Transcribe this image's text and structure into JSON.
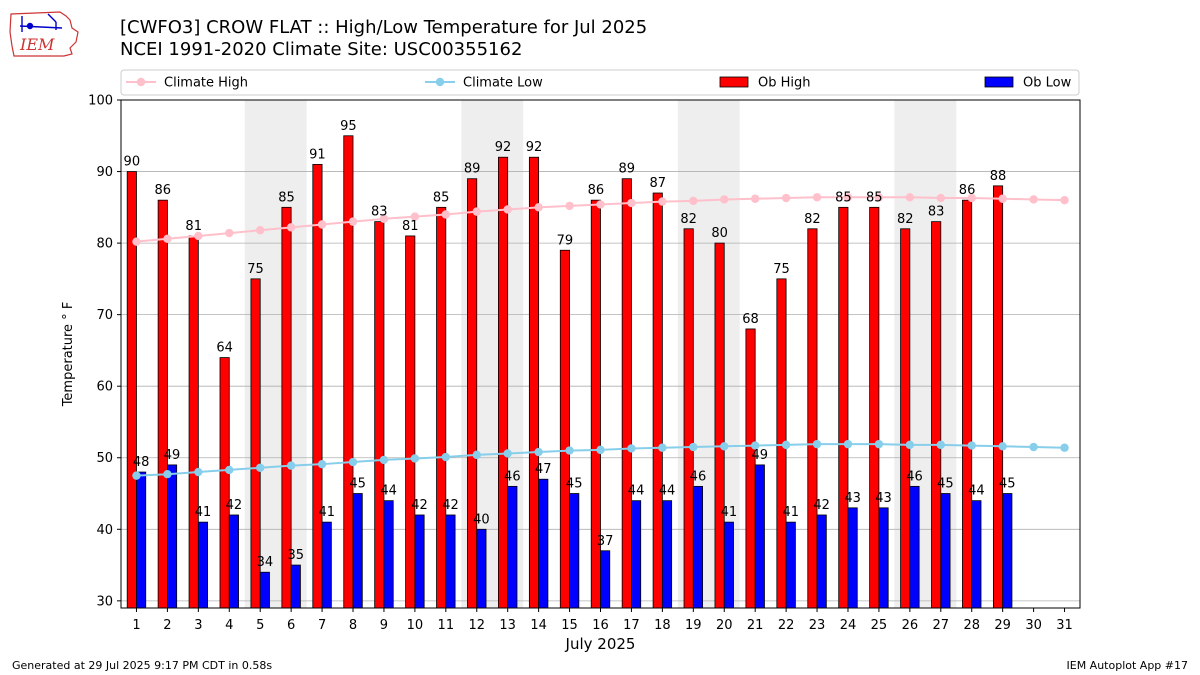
{
  "header": {
    "title_line1": "[CWFO3] CROW FLAT :: High/Low Temperature for Jul 2025",
    "title_line2": "NCEI 1991-2020 Climate Site: USC00355162",
    "logo_text": "IEM"
  },
  "footer": {
    "generated": "Generated at 29 Jul 2025 9:17 PM CDT in 0.58s",
    "app": "IEM Autoplot App #17"
  },
  "colors": {
    "ob_high": "#ff0000",
    "ob_low": "#0000ff",
    "climate_high": "#ffc0cb",
    "climate_low": "#87ceeb",
    "weekend_shade": "#eeeeee",
    "grid": "#b0b0b0"
  },
  "chart_data": {
    "type": "bar",
    "xlabel": "July 2025",
    "ylabel": "Temperature ° F",
    "ylim": [
      29,
      100
    ],
    "yticks": [
      30,
      40,
      50,
      60,
      70,
      80,
      90,
      100
    ],
    "grid": "horizontal",
    "legend_position": "top",
    "categories": [
      "1",
      "2",
      "3",
      "4",
      "5",
      "6",
      "7",
      "8",
      "9",
      "10",
      "11",
      "12",
      "13",
      "14",
      "15",
      "16",
      "17",
      "18",
      "19",
      "20",
      "21",
      "22",
      "23",
      "24",
      "25",
      "26",
      "27",
      "28",
      "29",
      "30",
      "31"
    ],
    "shaded_weekend_days": [
      [
        5,
        6
      ],
      [
        12,
        13
      ],
      [
        19,
        20
      ],
      [
        26,
        27
      ]
    ],
    "series": [
      {
        "name": "Climate High",
        "kind": "line",
        "values": [
          80.2,
          80.6,
          81.0,
          81.4,
          81.8,
          82.2,
          82.6,
          83.0,
          83.4,
          83.7,
          84.0,
          84.4,
          84.7,
          85.0,
          85.2,
          85.4,
          85.6,
          85.8,
          85.9,
          86.1,
          86.2,
          86.3,
          86.4,
          86.4,
          86.4,
          86.4,
          86.3,
          86.3,
          86.2,
          86.1,
          86.0
        ]
      },
      {
        "name": "Climate Low",
        "kind": "line",
        "values": [
          47.5,
          47.7,
          48.0,
          48.3,
          48.6,
          48.9,
          49.1,
          49.4,
          49.7,
          49.9,
          50.1,
          50.4,
          50.6,
          50.8,
          51.0,
          51.1,
          51.3,
          51.4,
          51.5,
          51.6,
          51.7,
          51.8,
          51.9,
          51.9,
          51.9,
          51.8,
          51.8,
          51.7,
          51.6,
          51.5,
          51.4
        ]
      },
      {
        "name": "Ob High",
        "kind": "bar",
        "values": [
          90,
          86,
          81,
          64,
          75,
          85,
          91,
          95,
          83,
          81,
          85,
          89,
          92,
          92,
          79,
          86,
          89,
          87,
          82,
          80,
          68,
          75,
          82,
          85,
          85,
          82,
          83,
          86,
          88,
          null,
          null
        ]
      },
      {
        "name": "Ob Low",
        "kind": "bar",
        "values": [
          48,
          49,
          41,
          42,
          34,
          35,
          41,
          45,
          44,
          42,
          42,
          40,
          46,
          47,
          45,
          37,
          44,
          44,
          46,
          41,
          49,
          41,
          42,
          43,
          43,
          46,
          45,
          44,
          45,
          null,
          null
        ]
      }
    ]
  }
}
